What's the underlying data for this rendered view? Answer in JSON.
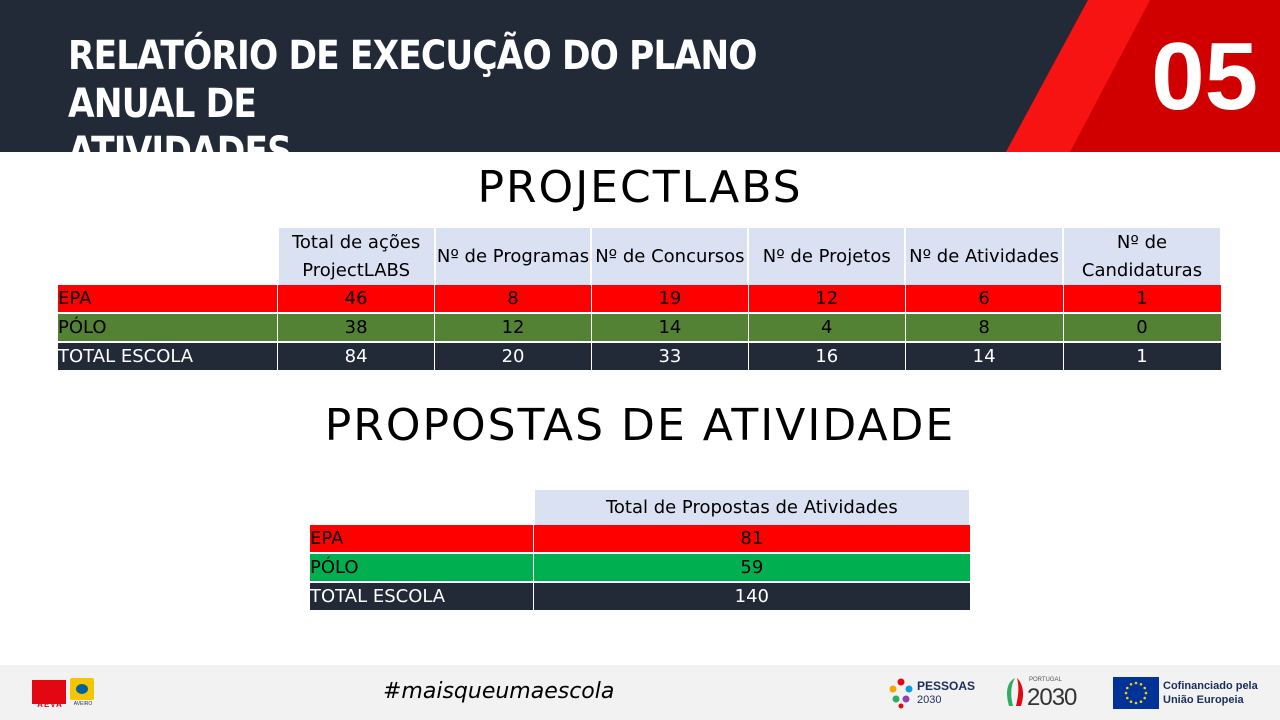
{
  "header": {
    "title_line1": "RELATÓRIO DE EXECUÇÃO DO PLANO ANUAL DE",
    "title_line2": "ATIVIDADES",
    "number": "05"
  },
  "section1": {
    "title": "PROJECTLABS",
    "columns": [
      "Total de ações ProjectLABS",
      "Nº de Programas",
      "Nº de Concursos",
      "Nº de Projetos",
      "Nº de Atividades",
      "Nº de Candidaturas"
    ],
    "rows": [
      {
        "label": "EPA",
        "values": [
          "46",
          "8",
          "19",
          "12",
          "6",
          "1"
        ]
      },
      {
        "label": "PÓLO",
        "values": [
          "38",
          "12",
          "14",
          "4",
          "8",
          "0"
        ]
      },
      {
        "label": "TOTAL ESCOLA",
        "values": [
          "84",
          "20",
          "33",
          "16",
          "14",
          "1"
        ]
      }
    ]
  },
  "section2": {
    "title": "PROPOSTAS DE ATIVIDADE",
    "column": "Total de Propostas de Atividades",
    "rows": [
      {
        "label": "EPA",
        "value": "81"
      },
      {
        "label": "PÓLO",
        "value": "59"
      },
      {
        "label": "TOTAL ESCOLA",
        "value": "140"
      }
    ]
  },
  "footer": {
    "hashtag": "#maisqueumaescola",
    "aeva_text": "AEVA",
    "aeva_sub": "AVEIRO",
    "pessoas_text": "PESSOAS",
    "pessoas_sub": "2030",
    "portugal_small": "PORTUGAL",
    "portugal_year": "2030",
    "eu_line1": "Cofinanciado pela",
    "eu_line2": "União Europeia"
  },
  "colors": {
    "dark": "#222a38",
    "red": "#ff0000",
    "green_dark": "#548235",
    "green_light": "#00b050",
    "header_cell": "#d9e1f2"
  }
}
